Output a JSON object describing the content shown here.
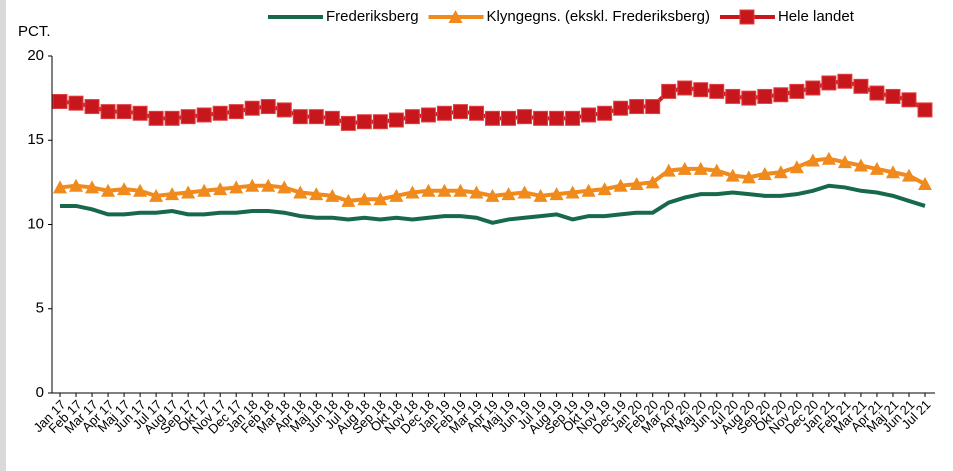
{
  "chart_data": {
    "type": "line",
    "y_label": "PCT.",
    "categories": [
      "Jan 17",
      "Feb 17",
      "Mar 17",
      "Apr 17",
      "Maj 17",
      "Jun 17",
      "Jul 17",
      "Aug 17",
      "Sep 17",
      "Okt 17",
      "Nov 17",
      "Dec 17",
      "Jan 18",
      "Feb 18",
      "Mar 18",
      "Apr 18",
      "Maj 18",
      "Jun 18",
      "Jul 18",
      "Aug 18",
      "Sep 18",
      "Okt 18",
      "Nov 18",
      "Dec 18",
      "Jan 19",
      "Feb 19",
      "Mar 19",
      "Apr 19",
      "Maj 19",
      "Jun 19",
      "Jul 19",
      "Aug 19",
      "Sep 19",
      "Okt 19",
      "Nov 19",
      "Dec 19",
      "Jan 20",
      "Feb 20",
      "Mar 20",
      "Apr 20",
      "Maj 20",
      "Jun 20",
      "Jul 20",
      "Aug 20",
      "Sep 20",
      "Okt 20",
      "Nov 20",
      "Dec 20",
      "Jan 21",
      "Feb 21",
      "Mar 21",
      "Apr 21",
      "Maj 21",
      "Jun 21",
      "Jul 21"
    ],
    "series": [
      {
        "name": "Frederiksberg",
        "color": "#17694a",
        "marker": "none",
        "values": [
          11.1,
          11.1,
          10.9,
          10.6,
          10.6,
          10.7,
          10.7,
          10.8,
          10.6,
          10.6,
          10.7,
          10.7,
          10.8,
          10.8,
          10.7,
          10.5,
          10.4,
          10.4,
          10.3,
          10.4,
          10.3,
          10.4,
          10.3,
          10.4,
          10.5,
          10.5,
          10.4,
          10.1,
          10.3,
          10.4,
          10.5,
          10.6,
          10.3,
          10.5,
          10.5,
          10.6,
          10.7,
          10.7,
          11.3,
          11.6,
          11.8,
          11.8,
          11.9,
          11.8,
          11.7,
          11.7,
          11.8,
          12.0,
          12.3,
          12.2,
          12.0,
          11.9,
          11.7,
          11.4,
          11.1
        ]
      },
      {
        "name": "Klyngegns. (ekskl. Frederiksberg)",
        "color": "#f08a1c",
        "marker": "triangle",
        "values": [
          12.2,
          12.3,
          12.2,
          12.0,
          12.1,
          12.0,
          11.7,
          11.8,
          11.9,
          12.0,
          12.1,
          12.2,
          12.3,
          12.3,
          12.2,
          11.9,
          11.8,
          11.7,
          11.4,
          11.5,
          11.5,
          11.7,
          11.9,
          12.0,
          12.0,
          12.0,
          11.9,
          11.7,
          11.8,
          11.9,
          11.7,
          11.8,
          11.9,
          12.0,
          12.1,
          12.3,
          12.4,
          12.5,
          13.2,
          13.3,
          13.3,
          13.2,
          12.9,
          12.8,
          13.0,
          13.1,
          13.4,
          13.8,
          13.9,
          13.7,
          13.5,
          13.3,
          13.1,
          12.9,
          12.4
        ]
      },
      {
        "name": "Hele landet",
        "color": "#c8161d",
        "marker": "square",
        "values": [
          17.3,
          17.2,
          17.0,
          16.7,
          16.7,
          16.6,
          16.3,
          16.3,
          16.4,
          16.5,
          16.6,
          16.7,
          16.9,
          17.0,
          16.8,
          16.4,
          16.4,
          16.3,
          16.0,
          16.1,
          16.1,
          16.2,
          16.4,
          16.5,
          16.6,
          16.7,
          16.6,
          16.3,
          16.3,
          16.4,
          16.3,
          16.3,
          16.3,
          16.5,
          16.6,
          16.9,
          17.0,
          17.0,
          17.9,
          18.1,
          18.0,
          17.9,
          17.6,
          17.5,
          17.6,
          17.7,
          17.9,
          18.1,
          18.4,
          18.5,
          18.2,
          17.8,
          17.6,
          17.4,
          16.8
        ]
      }
    ],
    "ylim": [
      0,
      20
    ],
    "yticks": [
      0,
      5,
      10,
      15,
      20
    ],
    "grid": false
  }
}
